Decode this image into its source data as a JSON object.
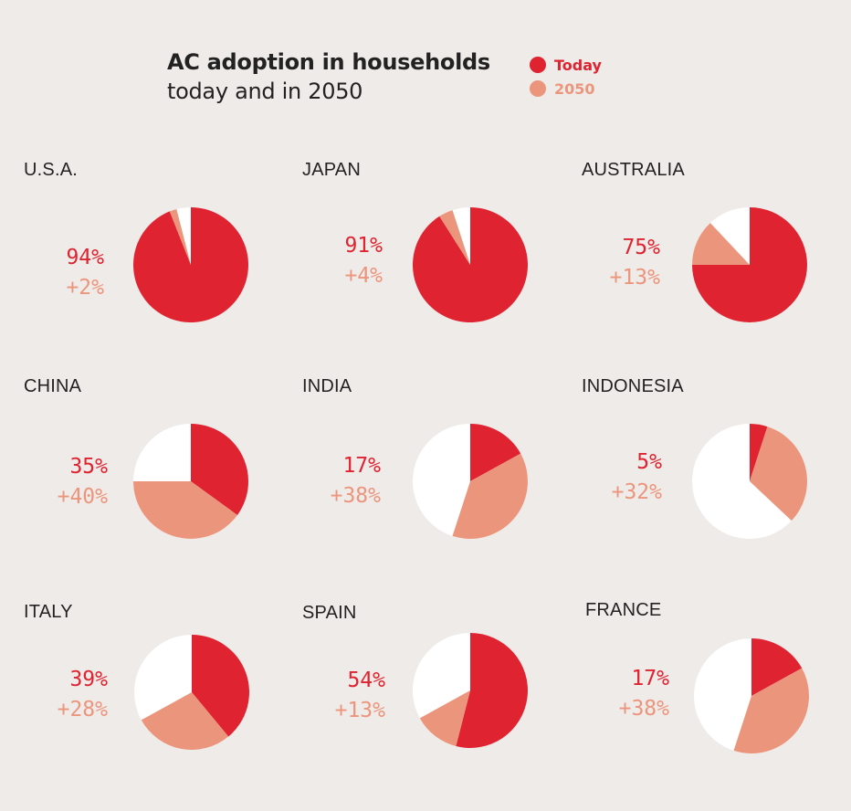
{
  "title": "AC adoption in households",
  "subtitle": "today and in 2050",
  "colors": {
    "today": "#df2331",
    "future": "#ec957d",
    "rest": "#ffffff"
  },
  "legend": [
    {
      "label": "Today",
      "color": "#df2331"
    },
    {
      "label": "2050",
      "color": "#ec957d"
    }
  ],
  "chart_data": {
    "type": "pie",
    "title": "AC adoption in households",
    "subtitle": "today and in 2050",
    "series_names": [
      "Today",
      "2050"
    ],
    "pies": [
      {
        "country": "U.S.A.",
        "today": 94,
        "added_2050": 2,
        "today_label": "94%",
        "added_label": "+2%"
      },
      {
        "country": "JAPAN",
        "today": 91,
        "added_2050": 4,
        "today_label": "91%",
        "added_label": "+4%"
      },
      {
        "country": "AUSTRALIA",
        "today": 75,
        "added_2050": 13,
        "today_label": "75%",
        "added_label": "+13%"
      },
      {
        "country": "CHINA",
        "today": 35,
        "added_2050": 40,
        "today_label": "35%",
        "added_label": "+40%"
      },
      {
        "country": "INDIA",
        "today": 17,
        "added_2050": 38,
        "today_label": "17%",
        "added_label": "+38%"
      },
      {
        "country": "INDONESIA",
        "today": 5,
        "added_2050": 32,
        "today_label": "5%",
        "added_label": "+32%"
      },
      {
        "country": "ITALY",
        "today": 39,
        "added_2050": 28,
        "today_label": "39%",
        "added_label": "+28%"
      },
      {
        "country": "SPAIN",
        "today": 54,
        "added_2050": 13,
        "today_label": "54%",
        "added_label": "+13%"
      },
      {
        "country": "FRANCE",
        "today": 17,
        "added_2050": 38,
        "today_label": "17%",
        "added_label": "+38%"
      }
    ]
  }
}
